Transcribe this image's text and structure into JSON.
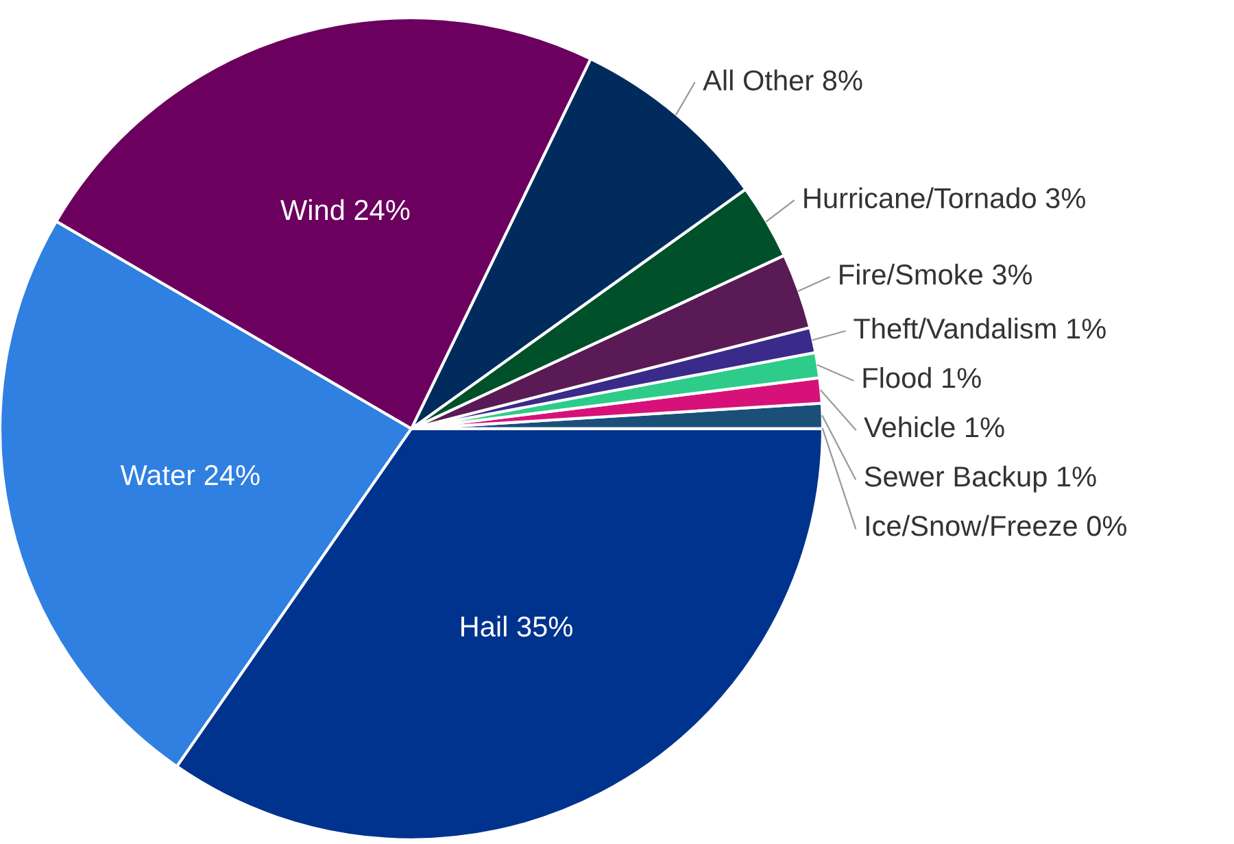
{
  "chart_data": {
    "type": "pie",
    "categories": [
      "Ice/Snow/Freeze",
      "Sewer Backup",
      "Vehicle",
      "Flood",
      "Theft/Vandalism",
      "Fire/Smoke",
      "Hurricane/Tornado",
      "All Other",
      "Wind",
      "Water",
      "Hail"
    ],
    "values": [
      0,
      1,
      1,
      1,
      1,
      3,
      3,
      8,
      24,
      24,
      35
    ],
    "value_labels": [
      "0%",
      "1%",
      "1%",
      "1%",
      "1%",
      "3%",
      "3%",
      "8%",
      "24%",
      "24%",
      "35%"
    ],
    "colors": [
      "#cfe3f5",
      "#1a4f7a",
      "#d6127a",
      "#2ecc8a",
      "#3a2a8a",
      "#5a1a55",
      "#00502a",
      "#002b5c",
      "#6b005e",
      "#2f80e0",
      "#00338d"
    ],
    "legend": false
  }
}
